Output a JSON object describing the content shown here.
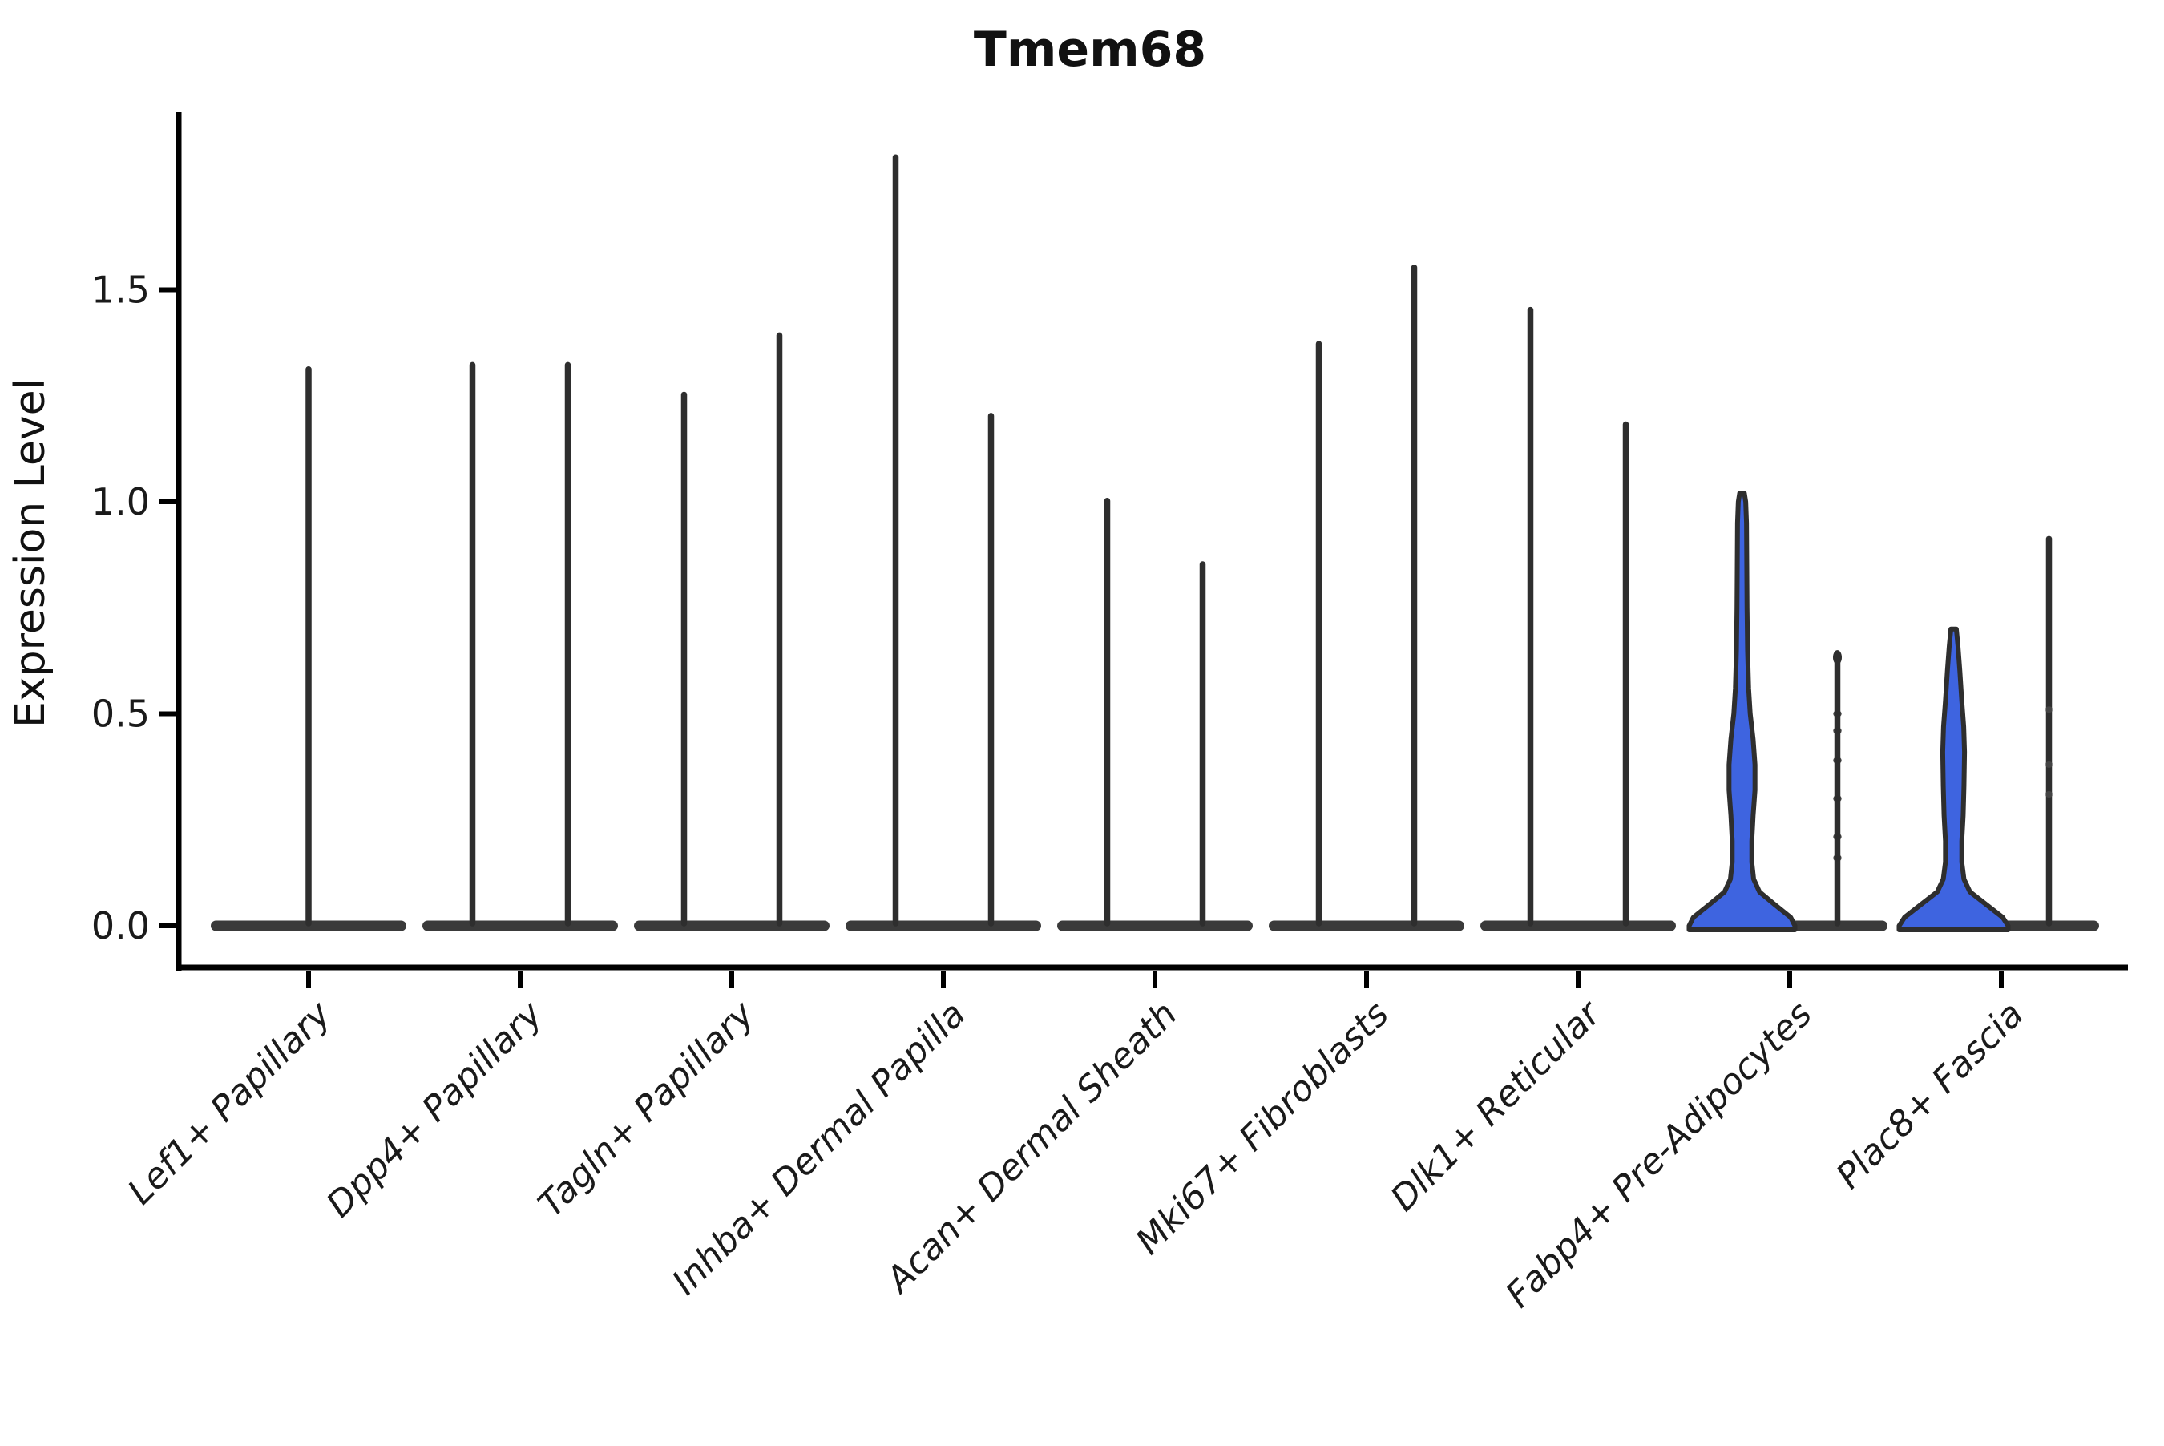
{
  "title": "Tmem68",
  "y_axis": {
    "label": "Expression Level",
    "tick_labels": [
      "0.0",
      "0.5",
      "1.0",
      "1.5"
    ]
  },
  "chart_data": {
    "type": "violin",
    "title": "Tmem68",
    "xlabel": "",
    "ylabel": "Expression Level",
    "ylim": [
      -0.09,
      1.91
    ],
    "yticks": [
      0.0,
      0.5,
      1.0,
      1.5
    ],
    "grid": false,
    "legend": "none",
    "categories": [
      "Lef1+ Papillary",
      "Dpp4+ Papillary",
      "Tagln+ Papillary",
      "Inhba+ Dermal Papilla",
      "Acan+ Dermal Sheath",
      "Mki67+ Fibroblasts",
      "Dlk1+ Reticular",
      "Fabp4+ Pre-Adipocytes",
      "Plac8+ Fascia"
    ],
    "violins": [
      {
        "category": "Lef1+ Papillary",
        "slot": "center",
        "max": 1.32,
        "zero_body": true
      },
      {
        "category": "Dpp4+ Papillary",
        "slot": "left",
        "max": 1.33,
        "zero_body": true
      },
      {
        "category": "Dpp4+ Papillary",
        "slot": "right",
        "max": 1.33,
        "zero_body": true
      },
      {
        "category": "Tagln+ Papillary",
        "slot": "left",
        "max": 1.26,
        "zero_body": true
      },
      {
        "category": "Tagln+ Papillary",
        "slot": "right",
        "max": 1.4,
        "zero_body": true
      },
      {
        "category": "Inhba+ Dermal Papilla",
        "slot": "left",
        "max": 1.82,
        "zero_body": true
      },
      {
        "category": "Inhba+ Dermal Papilla",
        "slot": "right",
        "max": 1.21,
        "zero_body": true
      },
      {
        "category": "Acan+ Dermal Sheath",
        "slot": "left",
        "max": 1.01,
        "zero_body": true
      },
      {
        "category": "Acan+ Dermal Sheath",
        "slot": "right",
        "max": 0.86,
        "zero_body": true
      },
      {
        "category": "Mki67+ Fibroblasts",
        "slot": "left",
        "max": 1.38,
        "zero_body": true
      },
      {
        "category": "Mki67+ Fibroblasts",
        "slot": "right",
        "max": 1.56,
        "zero_body": true
      },
      {
        "category": "Dlk1+ Reticular",
        "slot": "left",
        "max": 1.46,
        "zero_body": true
      },
      {
        "category": "Dlk1+ Reticular",
        "slot": "right",
        "max": 1.19,
        "zero_body": true
      },
      {
        "category": "Fabp4+ Pre-Adipocytes",
        "slot": "left",
        "max": 1.02,
        "zero_body": true,
        "highlighted": true,
        "fill": "#3E64E0",
        "profile": [
          [
            0,
            1.0
          ],
          [
            0.02,
            0.92
          ],
          [
            0.05,
            0.62
          ],
          [
            0.08,
            0.33
          ],
          [
            0.11,
            0.22
          ],
          [
            0.15,
            0.185
          ],
          [
            0.2,
            0.185
          ],
          [
            0.26,
            0.21
          ],
          [
            0.32,
            0.245
          ],
          [
            0.38,
            0.245
          ],
          [
            0.44,
            0.21
          ],
          [
            0.5,
            0.155
          ],
          [
            0.56,
            0.125
          ],
          [
            0.65,
            0.105
          ],
          [
            0.75,
            0.095
          ],
          [
            0.85,
            0.09
          ],
          [
            0.95,
            0.085
          ],
          [
            1.0,
            0.07
          ],
          [
            1.02,
            0.045
          ]
        ]
      },
      {
        "category": "Fabp4+ Pre-Adipocytes",
        "slot": "right",
        "max": 0.65,
        "zero_body": true,
        "top_knob": true,
        "points": [
          0.5,
          0.46,
          0.39,
          0.3,
          0.21,
          0.16
        ]
      },
      {
        "category": "Plac8+ Fascia",
        "slot": "left",
        "max": 0.7,
        "zero_body": true,
        "highlighted": true,
        "fill": "#3E64E0",
        "profile": [
          [
            0,
            1.0
          ],
          [
            0.02,
            0.9
          ],
          [
            0.05,
            0.6
          ],
          [
            0.08,
            0.3
          ],
          [
            0.11,
            0.19
          ],
          [
            0.15,
            0.15
          ],
          [
            0.2,
            0.15
          ],
          [
            0.26,
            0.175
          ],
          [
            0.33,
            0.19
          ],
          [
            0.41,
            0.2
          ],
          [
            0.47,
            0.185
          ],
          [
            0.53,
            0.15
          ],
          [
            0.6,
            0.115
          ],
          [
            0.66,
            0.08
          ],
          [
            0.7,
            0.05
          ]
        ]
      },
      {
        "category": "Plac8+ Fascia",
        "slot": "right",
        "max": 0.92,
        "zero_body": true,
        "points_faint": [
          0.51,
          0.38,
          0.31
        ]
      }
    ],
    "colors": {
      "highlight_fill": "#3E64E0",
      "violin_outline": "#2E2E2E",
      "zero_body": "#3A3A3A",
      "axis": "#000000",
      "text": "#1A1A1A"
    }
  }
}
